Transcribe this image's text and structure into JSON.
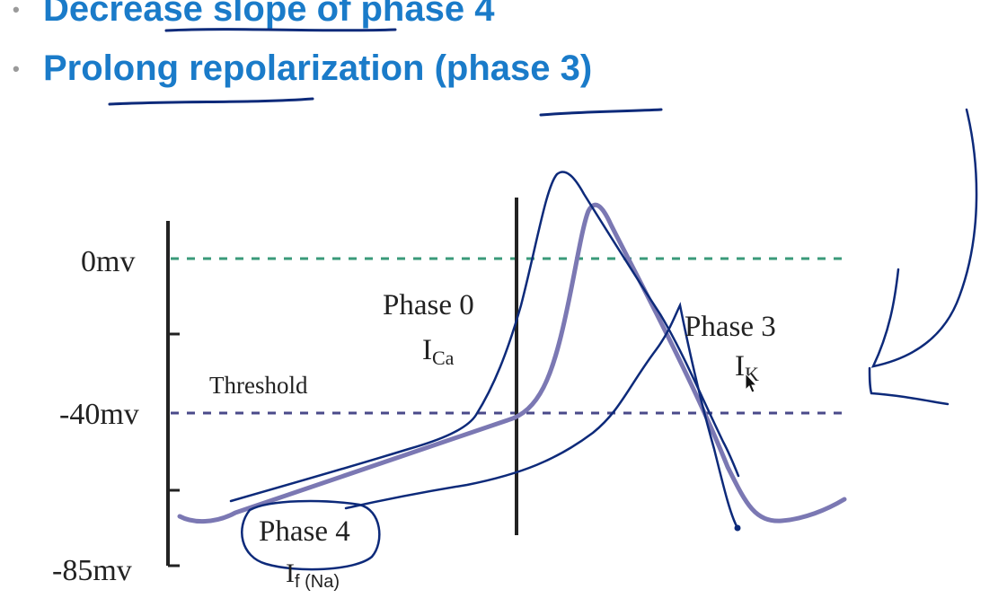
{
  "bullets": [
    {
      "text": "Decrease slope of phase 4"
    },
    {
      "text": "Prolong repolarization (phase 3)"
    }
  ],
  "axis_labels": {
    "top": "0mv",
    "middle": "-40mv",
    "bottom": "-85mv"
  },
  "threshold_label": "Threshold",
  "phase0": {
    "title": "Phase 0",
    "current": "I",
    "sub": "Ca"
  },
  "phase3": {
    "title": "Phase 3",
    "current": "I",
    "sub": "K"
  },
  "phase4": {
    "title": "Phase 4",
    "current": "I",
    "sub": "f (Na)"
  },
  "colors": {
    "bullet_text": "#1a7bc9",
    "bullet_dot": "#9a9a9a",
    "action_potential": "#7b78b3",
    "zero_line": "#3a9a7a",
    "threshold_line": "#4a4a8a",
    "annotation_ink": "#0d2a7a"
  }
}
